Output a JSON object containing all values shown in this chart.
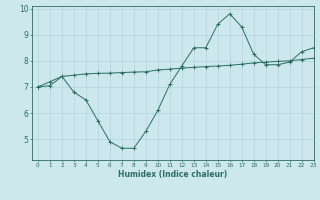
{
  "x": [
    0,
    1,
    2,
    3,
    4,
    5,
    6,
    7,
    8,
    9,
    10,
    11,
    12,
    13,
    14,
    15,
    16,
    17,
    18,
    19,
    20,
    21,
    22,
    23
  ],
  "line1": [
    7.0,
    7.2,
    7.4,
    6.8,
    6.5,
    5.7,
    4.9,
    4.65,
    4.65,
    5.3,
    6.1,
    7.1,
    7.8,
    8.5,
    8.5,
    9.4,
    9.8,
    9.3,
    8.25,
    7.85,
    7.85,
    7.95,
    8.35,
    8.5
  ],
  "line2": [
    7.0,
    7.05,
    7.4,
    7.45,
    7.5,
    7.52,
    7.53,
    7.55,
    7.57,
    7.58,
    7.65,
    7.68,
    7.72,
    7.75,
    7.78,
    7.8,
    7.83,
    7.87,
    7.92,
    7.95,
    7.98,
    8.0,
    8.05,
    8.1
  ],
  "line_color": "#2a6e63",
  "bg_color": "#cce8ec",
  "grid_color": "#aacfd4",
  "xlabel": "Humidex (Indice chaleur)",
  "ylim": [
    4.2,
    10.1
  ],
  "xlim": [
    -0.5,
    23
  ],
  "yticks": [
    5,
    6,
    7,
    8,
    9,
    10
  ],
  "ytick_labels": [
    "5",
    "6",
    "7",
    "8",
    "9",
    "10"
  ],
  "xticks": [
    0,
    1,
    2,
    3,
    4,
    5,
    6,
    7,
    8,
    9,
    10,
    11,
    12,
    13,
    14,
    15,
    16,
    17,
    18,
    19,
    20,
    21,
    22,
    23
  ]
}
